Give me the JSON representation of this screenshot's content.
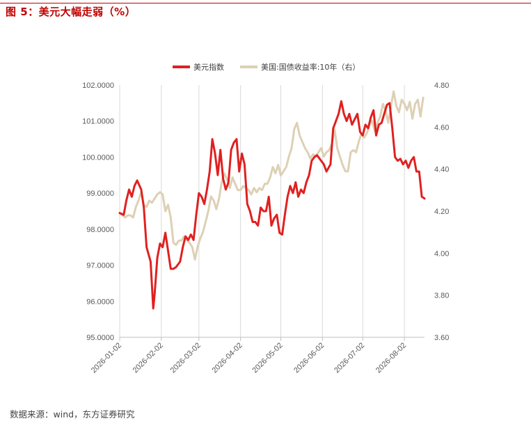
{
  "figure": {
    "title": "图 5：美元大幅走弱（%）",
    "source": "数据来源：wind，东方证券研究"
  },
  "chart_data": {
    "type": "line",
    "title": "",
    "xlabel": "",
    "ylabel_left": "",
    "ylabel_right": "",
    "x_ticks": [
      "2026-01-02",
      "2026-02-02",
      "2026-03-02",
      "2026-04-02",
      "2026-05-02",
      "2026-06-02",
      "2026-07-02",
      "2026-08-02"
    ],
    "y_left": {
      "lim": [
        95,
        102
      ],
      "ticks": [
        "95.0000",
        "96.0000",
        "97.0000",
        "98.0000",
        "99.0000",
        "100.0000",
        "101.0000",
        "102.0000"
      ]
    },
    "y_right": {
      "lim": [
        3.6,
        4.8
      ],
      "ticks": [
        "3.60",
        "3.80",
        "4.00",
        "4.20",
        "4.40",
        "4.60",
        "4.80"
      ]
    },
    "grid": "vertical",
    "legend_position": "top-center",
    "series": [
      {
        "name": "美元指数",
        "axis": "left",
        "color": "#e02020",
        "points": [
          [
            "2026-01-02",
            98.45
          ],
          [
            "2026-01-05",
            98.4
          ],
          [
            "2026-01-07",
            98.8
          ],
          [
            "2026-01-09",
            99.1
          ],
          [
            "2026-01-11",
            98.9
          ],
          [
            "2026-01-13",
            99.2
          ],
          [
            "2026-01-15",
            99.35
          ],
          [
            "2026-01-18",
            99.1
          ],
          [
            "2026-01-20",
            98.6
          ],
          [
            "2026-01-22",
            97.5
          ],
          [
            "2026-01-25",
            97.1
          ],
          [
            "2026-01-27",
            95.8
          ],
          [
            "2026-01-28",
            96.2
          ],
          [
            "2026-01-30",
            97.2
          ],
          [
            "2026-02-01",
            97.6
          ],
          [
            "2026-02-03",
            97.5
          ],
          [
            "2026-02-05",
            97.9
          ],
          [
            "2026-02-07",
            97.4
          ],
          [
            "2026-02-09",
            96.9
          ],
          [
            "2026-02-11",
            96.9
          ],
          [
            "2026-02-13",
            96.95
          ],
          [
            "2026-02-16",
            97.1
          ],
          [
            "2026-02-18",
            97.5
          ],
          [
            "2026-02-20",
            97.8
          ],
          [
            "2026-02-22",
            97.7
          ],
          [
            "2026-02-24",
            97.85
          ],
          [
            "2026-02-26",
            97.7
          ],
          [
            "2026-02-28",
            98.4
          ],
          [
            "2026-03-02",
            99.0
          ],
          [
            "2026-03-04",
            98.9
          ],
          [
            "2026-03-06",
            98.7
          ],
          [
            "2026-03-08",
            99.1
          ],
          [
            "2026-03-10",
            99.6
          ],
          [
            "2026-03-12",
            100.5
          ],
          [
            "2026-03-14",
            100.1
          ],
          [
            "2026-03-16",
            99.5
          ],
          [
            "2026-03-18",
            100.2
          ],
          [
            "2026-03-20",
            99.4
          ],
          [
            "2026-03-22",
            99.1
          ],
          [
            "2026-03-24",
            99.3
          ],
          [
            "2026-03-26",
            100.2
          ],
          [
            "2026-03-28",
            100.4
          ],
          [
            "2026-03-30",
            100.5
          ],
          [
            "2026-04-01",
            99.6
          ],
          [
            "2026-04-03",
            100.1
          ],
          [
            "2026-04-05",
            99.8
          ],
          [
            "2026-04-07",
            98.7
          ],
          [
            "2026-04-09",
            98.5
          ],
          [
            "2026-04-11",
            98.2
          ],
          [
            "2026-04-13",
            98.2
          ],
          [
            "2026-04-15",
            98.1
          ],
          [
            "2026-04-17",
            98.6
          ],
          [
            "2026-04-19",
            98.5
          ],
          [
            "2026-04-21",
            98.5
          ],
          [
            "2026-04-23",
            98.9
          ],
          [
            "2026-04-25",
            98.1
          ],
          [
            "2026-04-27",
            98.3
          ],
          [
            "2026-04-29",
            98.4
          ],
          [
            "2026-05-01",
            97.9
          ],
          [
            "2026-05-03",
            97.85
          ],
          [
            "2026-05-05",
            98.4
          ],
          [
            "2026-05-07",
            98.9
          ],
          [
            "2026-05-09",
            99.2
          ],
          [
            "2026-05-11",
            99.0
          ],
          [
            "2026-05-13",
            99.3
          ],
          [
            "2026-05-15",
            98.9
          ],
          [
            "2026-05-17",
            99.1
          ],
          [
            "2026-05-19",
            99.0
          ],
          [
            "2026-05-21",
            99.3
          ],
          [
            "2026-05-23",
            99.5
          ],
          [
            "2026-05-25",
            99.9
          ],
          [
            "2026-05-27",
            100.0
          ],
          [
            "2026-05-29",
            100.05
          ],
          [
            "2026-06-01",
            99.9
          ],
          [
            "2026-06-03",
            99.8
          ],
          [
            "2026-06-05",
            99.6
          ],
          [
            "2026-06-08",
            99.8
          ],
          [
            "2026-06-10",
            100.8
          ],
          [
            "2026-06-12",
            101.0
          ],
          [
            "2026-06-14",
            101.2
          ],
          [
            "2026-06-16",
            101.55
          ],
          [
            "2026-06-18",
            101.2
          ],
          [
            "2026-06-20",
            101.0
          ],
          [
            "2026-06-22",
            101.2
          ],
          [
            "2026-06-24",
            100.9
          ],
          [
            "2026-06-26",
            101.05
          ],
          [
            "2026-06-28",
            101.2
          ],
          [
            "2026-06-30",
            100.7
          ],
          [
            "2026-07-02",
            100.6
          ],
          [
            "2026-07-04",
            100.9
          ],
          [
            "2026-07-06",
            100.8
          ],
          [
            "2026-07-08",
            101.1
          ],
          [
            "2026-07-10",
            101.3
          ],
          [
            "2026-07-12",
            100.6
          ],
          [
            "2026-07-14",
            100.9
          ],
          [
            "2026-07-16",
            100.95
          ],
          [
            "2026-07-18",
            101.2
          ],
          [
            "2026-07-20",
            101.45
          ],
          [
            "2026-07-22",
            101.5
          ],
          [
            "2026-07-24",
            100.8
          ],
          [
            "2026-07-26",
            100.0
          ],
          [
            "2026-07-28",
            99.9
          ],
          [
            "2026-07-30",
            99.95
          ],
          [
            "2026-08-01",
            99.8
          ],
          [
            "2026-08-03",
            99.9
          ],
          [
            "2026-08-05",
            99.7
          ],
          [
            "2026-08-07",
            99.9
          ],
          [
            "2026-08-09",
            100.0
          ],
          [
            "2026-08-11",
            99.6
          ],
          [
            "2026-08-13",
            99.6
          ],
          [
            "2026-08-15",
            98.9
          ],
          [
            "2026-08-17",
            98.85
          ]
        ]
      },
      {
        "name": "美国:国债收益率:10年（右）",
        "axis": "right",
        "color": "#ddd0b4",
        "points": [
          [
            "2026-01-02",
            4.19
          ],
          [
            "2026-01-04",
            4.18
          ],
          [
            "2026-01-06",
            4.17
          ],
          [
            "2026-01-08",
            4.18
          ],
          [
            "2026-01-10",
            4.18
          ],
          [
            "2026-01-12",
            4.17
          ],
          [
            "2026-01-14",
            4.22
          ],
          [
            "2026-01-16",
            4.25
          ],
          [
            "2026-01-18",
            4.29
          ],
          [
            "2026-01-20",
            4.23
          ],
          [
            "2026-01-22",
            4.22
          ],
          [
            "2026-01-24",
            4.25
          ],
          [
            "2026-01-26",
            4.24
          ],
          [
            "2026-01-28",
            4.26
          ],
          [
            "2026-01-30",
            4.28
          ],
          [
            "2026-02-01",
            4.29
          ],
          [
            "2026-02-03",
            4.28
          ],
          [
            "2026-02-05",
            4.2
          ],
          [
            "2026-02-07",
            4.23
          ],
          [
            "2026-02-09",
            4.17
          ],
          [
            "2026-02-11",
            4.05
          ],
          [
            "2026-02-13",
            4.04
          ],
          [
            "2026-02-15",
            4.06
          ],
          [
            "2026-02-17",
            4.06
          ],
          [
            "2026-02-19",
            4.08
          ],
          [
            "2026-02-21",
            4.06
          ],
          [
            "2026-02-23",
            4.05
          ],
          [
            "2026-02-25",
            4.03
          ],
          [
            "2026-02-27",
            3.97
          ],
          [
            "2026-03-01",
            4.03
          ],
          [
            "2026-03-03",
            4.07
          ],
          [
            "2026-03-05",
            4.1
          ],
          [
            "2026-03-07",
            4.15
          ],
          [
            "2026-03-09",
            4.2
          ],
          [
            "2026-03-11",
            4.27
          ],
          [
            "2026-03-13",
            4.25
          ],
          [
            "2026-03-15",
            4.21
          ],
          [
            "2026-03-17",
            4.26
          ],
          [
            "2026-03-19",
            4.34
          ],
          [
            "2026-03-21",
            4.38
          ],
          [
            "2026-03-23",
            4.35
          ],
          [
            "2026-03-25",
            4.31
          ],
          [
            "2026-03-27",
            4.36
          ],
          [
            "2026-03-29",
            4.33
          ],
          [
            "2026-03-31",
            4.3
          ],
          [
            "2026-04-02",
            4.3
          ],
          [
            "2026-04-04",
            4.32
          ],
          [
            "2026-04-06",
            4.31
          ],
          [
            "2026-04-08",
            4.3
          ],
          [
            "2026-04-10",
            4.28
          ],
          [
            "2026-04-12",
            4.31
          ],
          [
            "2026-04-14",
            4.29
          ],
          [
            "2026-04-16",
            4.31
          ],
          [
            "2026-04-18",
            4.3
          ],
          [
            "2026-04-20",
            4.33
          ],
          [
            "2026-04-22",
            4.33
          ],
          [
            "2026-04-24",
            4.36
          ],
          [
            "2026-04-26",
            4.41
          ],
          [
            "2026-04-28",
            4.38
          ],
          [
            "2026-04-30",
            4.42
          ],
          [
            "2026-05-02",
            4.37
          ],
          [
            "2026-05-04",
            4.39
          ],
          [
            "2026-05-06",
            4.41
          ],
          [
            "2026-05-08",
            4.46
          ],
          [
            "2026-05-10",
            4.5
          ],
          [
            "2026-05-12",
            4.59
          ],
          [
            "2026-05-14",
            4.62
          ],
          [
            "2026-05-16",
            4.56
          ],
          [
            "2026-05-18",
            4.53
          ],
          [
            "2026-05-20",
            4.5
          ],
          [
            "2026-05-22",
            4.48
          ],
          [
            "2026-05-24",
            4.45
          ],
          [
            "2026-05-26",
            4.47
          ],
          [
            "2026-05-28",
            4.46
          ],
          [
            "2026-05-30",
            4.48
          ],
          [
            "2026-06-01",
            4.5
          ],
          [
            "2026-06-03",
            4.46
          ],
          [
            "2026-06-05",
            4.48
          ],
          [
            "2026-06-07",
            4.49
          ],
          [
            "2026-06-09",
            4.52
          ],
          [
            "2026-06-11",
            4.59
          ],
          [
            "2026-06-13",
            4.5
          ],
          [
            "2026-06-15",
            4.46
          ],
          [
            "2026-06-17",
            4.42
          ],
          [
            "2026-06-19",
            4.39
          ],
          [
            "2026-06-21",
            4.39
          ],
          [
            "2026-06-23",
            4.48
          ],
          [
            "2026-06-25",
            4.49
          ],
          [
            "2026-06-27",
            4.48
          ],
          [
            "2026-06-29",
            4.53
          ],
          [
            "2026-07-01",
            4.57
          ],
          [
            "2026-07-03",
            4.55
          ],
          [
            "2026-07-05",
            4.57
          ],
          [
            "2026-07-07",
            4.61
          ],
          [
            "2026-07-09",
            4.63
          ],
          [
            "2026-07-11",
            4.58
          ],
          [
            "2026-07-13",
            4.62
          ],
          [
            "2026-07-15",
            4.65
          ],
          [
            "2026-07-17",
            4.71
          ],
          [
            "2026-07-19",
            4.68
          ],
          [
            "2026-07-21",
            4.62
          ],
          [
            "2026-07-23",
            4.7
          ],
          [
            "2026-07-25",
            4.77
          ],
          [
            "2026-07-27",
            4.7
          ],
          [
            "2026-07-29",
            4.67
          ],
          [
            "2026-07-31",
            4.73
          ],
          [
            "2026-08-02",
            4.71
          ],
          [
            "2026-08-04",
            4.68
          ],
          [
            "2026-08-06",
            4.72
          ],
          [
            "2026-08-08",
            4.64
          ],
          [
            "2026-08-10",
            4.71
          ],
          [
            "2026-08-12",
            4.73
          ],
          [
            "2026-08-14",
            4.65
          ],
          [
            "2026-08-16",
            4.74
          ]
        ]
      }
    ]
  }
}
